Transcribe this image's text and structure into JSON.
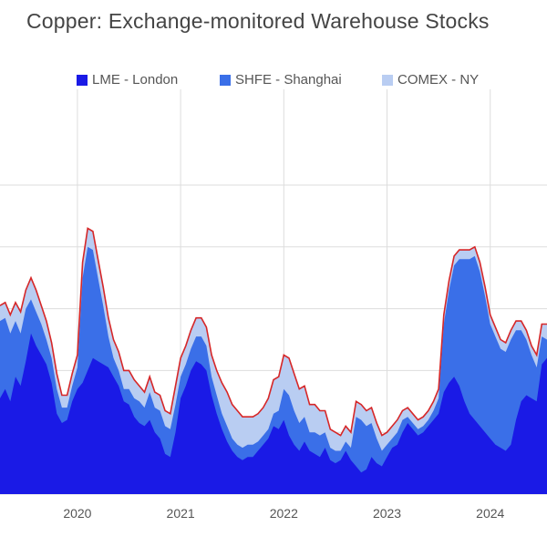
{
  "chart_data": {
    "type": "area",
    "stacked": true,
    "title": "Copper: Exchange-monitored Warehouse Stocks",
    "xlabel": "",
    "ylabel": "",
    "legend_position": "top-center",
    "grid": true,
    "xlim": [
      2019.25,
      2024.55
    ],
    "ylim": [
      0,
      640
    ],
    "x_ticks": [
      2020,
      2021,
      2022,
      2023,
      2024
    ],
    "x_tick_labels": [
      "2020",
      "2021",
      "2022",
      "2023",
      "2024"
    ],
    "y_gridlines": [
      0,
      100,
      200,
      300,
      400,
      500
    ],
    "total_line_color": "#d62728",
    "x": [
      2019.25,
      2019.3,
      2019.35,
      2019.4,
      2019.45,
      2019.5,
      2019.55,
      2019.6,
      2019.65,
      2019.7,
      2019.75,
      2019.8,
      2019.85,
      2019.9,
      2019.95,
      2020.0,
      2020.05,
      2020.1,
      2020.15,
      2020.2,
      2020.25,
      2020.3,
      2020.35,
      2020.4,
      2020.45,
      2020.5,
      2020.55,
      2020.6,
      2020.65,
      2020.7,
      2020.75,
      2020.8,
      2020.85,
      2020.9,
      2020.95,
      2021.0,
      2021.05,
      2021.1,
      2021.15,
      2021.2,
      2021.25,
      2021.3,
      2021.35,
      2021.4,
      2021.45,
      2021.5,
      2021.55,
      2021.6,
      2021.65,
      2021.7,
      2021.75,
      2021.8,
      2021.85,
      2021.9,
      2021.95,
      2022.0,
      2022.05,
      2022.1,
      2022.15,
      2022.2,
      2022.25,
      2022.3,
      2022.35,
      2022.4,
      2022.45,
      2022.5,
      2022.55,
      2022.6,
      2022.65,
      2022.7,
      2022.75,
      2022.8,
      2022.85,
      2022.9,
      2022.95,
      2023.0,
      2023.05,
      2023.1,
      2023.15,
      2023.2,
      2023.25,
      2023.3,
      2023.35,
      2023.4,
      2023.45,
      2023.5,
      2023.55,
      2023.6,
      2023.65,
      2023.7,
      2023.75,
      2023.8,
      2023.85,
      2023.9,
      2023.95,
      2024.0,
      2024.05,
      2024.1,
      2024.15,
      2024.2,
      2024.25,
      2024.3,
      2024.35,
      2024.4,
      2024.45,
      2024.5,
      2024.55
    ],
    "series": [
      {
        "name": "LME - London",
        "color": "#1a1ae6",
        "values": [
          155,
          170,
          150,
          190,
          175,
          215,
          260,
          240,
          225,
          210,
          180,
          130,
          115,
          120,
          150,
          170,
          180,
          200,
          220,
          215,
          210,
          205,
          190,
          175,
          150,
          145,
          125,
          115,
          110,
          120,
          100,
          90,
          65,
          60,
          100,
          155,
          175,
          200,
          215,
          210,
          200,
          160,
          130,
          105,
          85,
          70,
          60,
          55,
          60,
          60,
          70,
          80,
          90,
          110,
          105,
          120,
          95,
          80,
          70,
          85,
          70,
          65,
          60,
          75,
          55,
          50,
          55,
          70,
          55,
          45,
          35,
          40,
          60,
          50,
          45,
          60,
          75,
          80,
          100,
          115,
          105,
          95,
          100,
          110,
          120,
          130,
          165,
          180,
          190,
          175,
          150,
          130,
          120,
          110,
          100,
          90,
          80,
          75,
          70,
          80,
          120,
          150,
          160,
          155,
          150,
          210,
          220
        ]
      },
      {
        "name": "SHFE - Shanghai",
        "color": "#3a6fe8",
        "values": [
          125,
          115,
          110,
          90,
          85,
          85,
          55,
          55,
          50,
          40,
          40,
          40,
          25,
          20,
          25,
          35,
          170,
          200,
          175,
          135,
          95,
          50,
          30,
          25,
          20,
          25,
          30,
          35,
          30,
          45,
          40,
          45,
          45,
          45,
          45,
          35,
          35,
          35,
          40,
          45,
          40,
          30,
          30,
          25,
          25,
          20,
          20,
          20,
          20,
          20,
          15,
          15,
          15,
          20,
          30,
          50,
          65,
          55,
          45,
          40,
          30,
          35,
          35,
          25,
          20,
          20,
          15,
          15,
          20,
          80,
          85,
          70,
          55,
          40,
          25,
          20,
          15,
          20,
          20,
          10,
          10,
          10,
          10,
          10,
          15,
          25,
          110,
          150,
          180,
          205,
          230,
          250,
          265,
          250,
          220,
          185,
          175,
          160,
          160,
          170,
          145,
          115,
          90,
          70,
          55,
          45,
          30
        ]
      },
      {
        "name": "COMEX - NY",
        "color": "#b9cdf2",
        "values": [
          25,
          25,
          30,
          30,
          35,
          30,
          35,
          35,
          30,
          30,
          25,
          25,
          20,
          20,
          20,
          20,
          25,
          30,
          30,
          30,
          30,
          30,
          30,
          30,
          30,
          30,
          30,
          25,
          25,
          25,
          25,
          25,
          25,
          25,
          30,
          30,
          30,
          30,
          30,
          30,
          30,
          35,
          40,
          50,
          55,
          55,
          55,
          50,
          45,
          45,
          45,
          45,
          50,
          55,
          55,
          55,
          60,
          60,
          55,
          50,
          45,
          45,
          40,
          35,
          30,
          30,
          25,
          25,
          25,
          25,
          25,
          25,
          25,
          25,
          25,
          20,
          20,
          20,
          15,
          15,
          15,
          15,
          15,
          15,
          15,
          15,
          15,
          15,
          15,
          15,
          15,
          15,
          15,
          15,
          15,
          15,
          15,
          15,
          15,
          15,
          15,
          15,
          15,
          15,
          20,
          20,
          25
        ]
      }
    ]
  }
}
